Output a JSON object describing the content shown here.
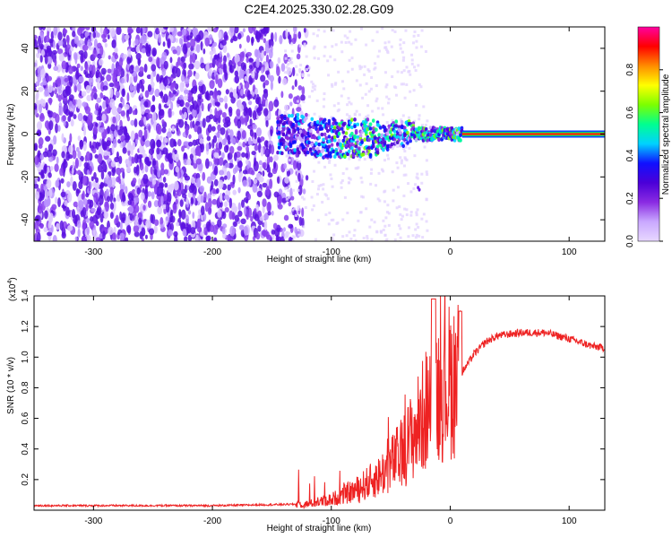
{
  "title": "C2E4.2025.330.02.28.G09",
  "chart_data": [
    {
      "type": "heatmap",
      "xlabel": "Height of straight line (km)",
      "ylabel": "Frequency (Hz)",
      "xlim": [
        -350,
        130
      ],
      "ylim": [
        -50,
        50
      ],
      "xticks": [
        -300,
        -200,
        -100,
        0,
        100
      ],
      "yticks": [
        -40,
        -20,
        0,
        20,
        40
      ],
      "colorbar": {
        "label": "Normalized spectral amplitude",
        "range": [
          0.0,
          1.0
        ],
        "ticks": [
          "0.0",
          "0.2",
          "0.4",
          "0.6",
          "0.8"
        ],
        "tick_values": [
          0.0,
          0.2,
          0.4,
          0.6,
          0.8
        ],
        "colormap": [
          "#e8d8ff",
          "#c9a8ff",
          "#8a2be2",
          "#4b00d8",
          "#1010ff",
          "#00d2ff",
          "#00ff90",
          "#7cff00",
          "#ffff00",
          "#ff8c00",
          "#ff0000",
          "#ff00a0"
        ]
      },
      "features": {
        "noise_region_x": [
          -350,
          -140
        ],
        "signal_band_x": [
          -145,
          130
        ],
        "signal_center_hz": 0,
        "strong_line_from_x": 10
      }
    },
    {
      "type": "line",
      "xlabel": "Height of straight line (km)",
      "ylabel": "SNR (10 * v/v)",
      "scale_label": "(x10",
      "scale_exp": "4",
      "scale_close": ")",
      "xlim": [
        -350,
        130
      ],
      "ylim": [
        0,
        1.4
      ],
      "xticks": [
        -300,
        -200,
        -100,
        0,
        100
      ],
      "yticks": [
        "0.2",
        "0.4",
        "0.6",
        "0.8",
        "1.0",
        "1.2",
        "1.4"
      ],
      "ytick_values": [
        0.2,
        0.4,
        0.6,
        0.8,
        1.0,
        1.2,
        1.4
      ],
      "color": "#ee2222",
      "envelope": {
        "x": [
          -350,
          -200,
          -120,
          -100,
          -80,
          -60,
          -40,
          -25,
          -15,
          0,
          10,
          20,
          30,
          40,
          60,
          80,
          100,
          120,
          130
        ],
        "y": [
          0.03,
          0.03,
          0.04,
          0.07,
          0.13,
          0.22,
          0.38,
          0.58,
          0.75,
          0.85,
          0.9,
          1.02,
          1.1,
          1.14,
          1.16,
          1.16,
          1.12,
          1.07,
          1.06
        ]
      }
    }
  ]
}
